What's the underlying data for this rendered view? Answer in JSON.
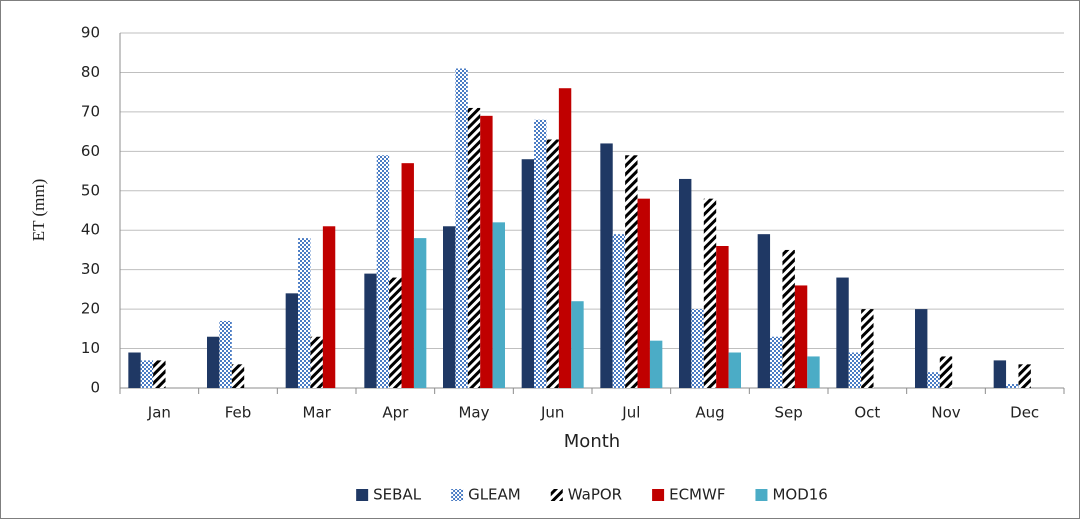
{
  "chart_data": {
    "type": "bar",
    "x_label": "Month",
    "y_label": "ET (mm)",
    "categories": [
      "Jan",
      "Feb",
      "Mar",
      "Apr",
      "May",
      "Jun",
      "Jul",
      "Aug",
      "Sep",
      "Oct",
      "Nov",
      "Dec"
    ],
    "series": [
      {
        "name": "SEBAL",
        "color": "#1f3864",
        "pattern": "solid",
        "values": [
          9,
          13,
          24,
          29,
          41,
          58,
          62,
          53,
          39,
          28,
          20,
          7
        ]
      },
      {
        "name": "GLEAM",
        "color": "#4a7cc4",
        "pattern": "checker",
        "values": [
          7,
          17,
          38,
          59,
          81,
          68,
          39,
          20,
          13,
          9,
          4,
          1
        ]
      },
      {
        "name": "WaPOR",
        "color": "#000000",
        "pattern": "hatch",
        "values": [
          7,
          6,
          13,
          28,
          71,
          63,
          59,
          48,
          35,
          20,
          8,
          6
        ]
      },
      {
        "name": "ECMWF",
        "color": "#c00000",
        "pattern": "solid",
        "values": [
          null,
          null,
          41,
          57,
          69,
          76,
          48,
          36,
          26,
          null,
          null,
          null
        ]
      },
      {
        "name": "MOD16",
        "color": "#4bacc6",
        "pattern": "solid",
        "values": [
          null,
          null,
          null,
          38,
          42,
          22,
          12,
          9,
          8,
          null,
          null,
          null
        ]
      }
    ],
    "ylim": [
      0,
      90
    ],
    "yticks": [
      0,
      10,
      20,
      30,
      40,
      50,
      60,
      70,
      80,
      90
    ],
    "grid": true,
    "legend": "bottom"
  }
}
